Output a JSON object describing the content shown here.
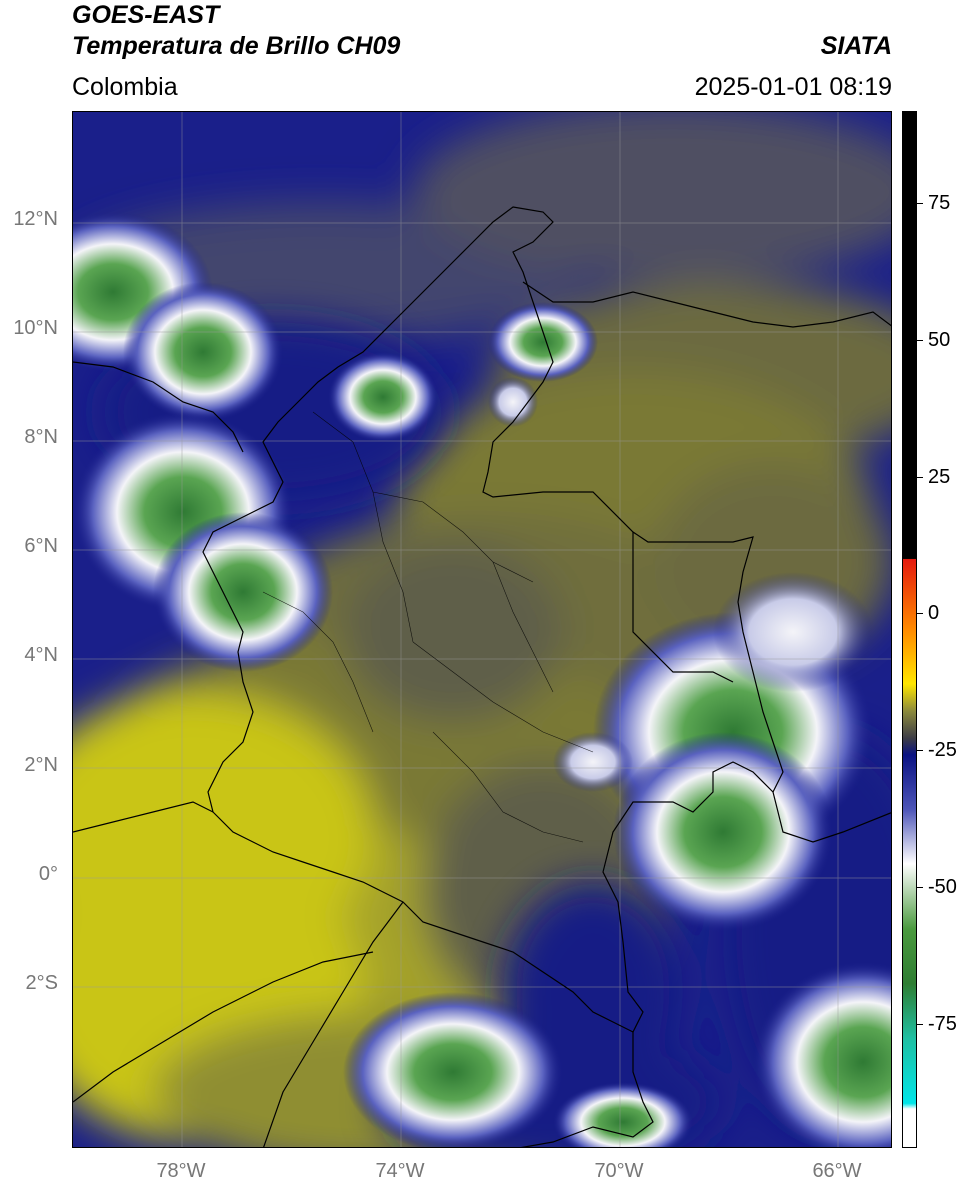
{
  "header": {
    "satellite": "GOES-EAST",
    "product": "Temperatura de Brillo CH09",
    "source": "SIATA",
    "region": "Colombia",
    "datetime": "2025-01-01 08:19"
  },
  "map": {
    "lon_range": [
      -80,
      -65
    ],
    "lat_range": [
      -5,
      14
    ],
    "latitude_labels": [
      {
        "value": 12,
        "label": "12°N"
      },
      {
        "value": 10,
        "label": "10°N"
      },
      {
        "value": 8,
        "label": "8°N"
      },
      {
        "value": 6,
        "label": "6°N"
      },
      {
        "value": 4,
        "label": "4°N"
      },
      {
        "value": 2,
        "label": "2°N"
      },
      {
        "value": 0,
        "label": "0°"
      },
      {
        "value": -2,
        "label": "2°S"
      }
    ],
    "longitude_labels": [
      {
        "value": -78,
        "label": "78°W"
      },
      {
        "value": -74,
        "label": "74°W"
      },
      {
        "value": -70,
        "label": "70°W"
      },
      {
        "value": -66,
        "label": "66°W"
      }
    ],
    "colors": {
      "warm_yellow": "#c9c519",
      "olive": "#7d7c38",
      "grey_olive": "#5f5e48",
      "navy": "#1a1f8a",
      "deep_navy": "#0d137a",
      "white": "#f4f4f8",
      "green": "#4f9a49",
      "dark_green": "#2f7a34",
      "border": "#000000",
      "grid": "#9a9a9a"
    }
  },
  "colorbar": {
    "range": [
      -100,
      90
    ],
    "tick_labels": [
      {
        "value": 75,
        "label": "75"
      },
      {
        "value": 50,
        "label": "50"
      },
      {
        "value": 25,
        "label": "25"
      },
      {
        "value": 0,
        "label": "0"
      },
      {
        "value": -25,
        "label": "-25"
      },
      {
        "value": -50,
        "label": "-50"
      },
      {
        "value": -75,
        "label": "-75"
      }
    ],
    "stops": [
      {
        "value": 90,
        "color": "#000000"
      },
      {
        "value": 8,
        "color": "#000000"
      },
      {
        "value": 7.9,
        "color": "#e41a0e"
      },
      {
        "value": -5,
        "color": "#ff8a00"
      },
      {
        "value": -15,
        "color": "#ffe600"
      },
      {
        "value": -20,
        "color": "#8c8a3c"
      },
      {
        "value": -25,
        "color": "#3c3c46"
      },
      {
        "value": -28,
        "color": "#0a1282"
      },
      {
        "value": -38,
        "color": "#4d55b8"
      },
      {
        "value": -48,
        "color": "#ffffff"
      },
      {
        "value": -60,
        "color": "#4a9a3e"
      },
      {
        "value": -70,
        "color": "#2e7d32"
      },
      {
        "value": -80,
        "color": "#1fbfa2"
      },
      {
        "value": -92,
        "color": "#00e5e8"
      },
      {
        "value": -93,
        "color": "#ffffff"
      },
      {
        "value": -100,
        "color": "#ffffff"
      }
    ]
  }
}
